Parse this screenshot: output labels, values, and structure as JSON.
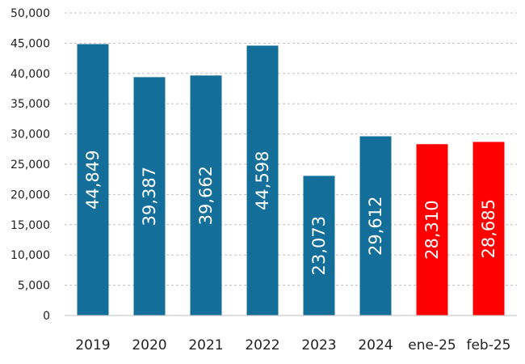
{
  "chart_data": {
    "type": "bar",
    "title": "",
    "xlabel": "",
    "ylabel": "",
    "ylim": [
      0,
      50000
    ],
    "ytick_step": 5000,
    "yticks": [
      "0",
      "5,000",
      "10,000",
      "15,000",
      "20,000",
      "25,000",
      "30,000",
      "35,000",
      "40,000",
      "45,000",
      "50,000"
    ],
    "grid": true,
    "categories": [
      "2019",
      "2020",
      "2021",
      "2022",
      "2023",
      "2024",
      "ene-25",
      "feb-25"
    ],
    "values": [
      44849,
      39387,
      39662,
      44598,
      23073,
      29612,
      28310,
      28685
    ],
    "value_labels": [
      "44,849",
      "39,387",
      "39,662",
      "44,598",
      "23,073",
      "29,612",
      "28,310",
      "28,685"
    ],
    "bar_colors": [
      "#136f99",
      "#136f99",
      "#136f99",
      "#136f99",
      "#136f99",
      "#136f99",
      "#ff0000",
      "#ff0000"
    ]
  }
}
